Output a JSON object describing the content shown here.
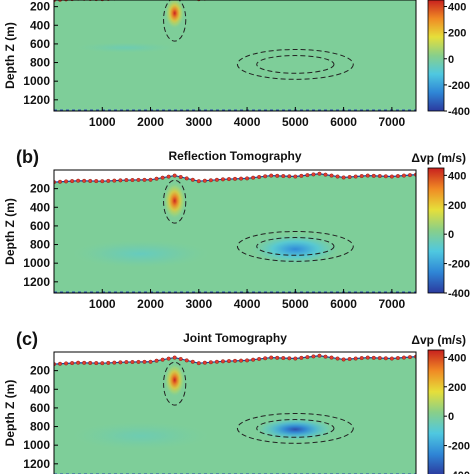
{
  "chart_data": {
    "type": "heatmap",
    "colormap": [
      "#2b3a9e",
      "#2f86d6",
      "#4fc8e0",
      "#88cf8a",
      "#e6df3a",
      "#f08a24",
      "#c8201e"
    ],
    "colorbar_range": [
      -400,
      450
    ],
    "colorbar_ticks": [
      "400",
      "200",
      "0",
      "-200",
      "-400"
    ],
    "colorbar_tick_values": [
      400,
      200,
      0,
      -200,
      -400
    ],
    "colorbar_label": "Δvp (m/s)",
    "ylabel": "Depth Z (m)",
    "xlim": [
      0,
      7500
    ],
    "x_ticks": [
      "1000",
      "2000",
      "3000",
      "4000",
      "5000",
      "6000",
      "7000"
    ],
    "x_tick_values": [
      1000,
      2000,
      3000,
      4000,
      5000,
      6000,
      7000
    ],
    "y_ticks": [
      "200",
      "400",
      "600",
      "800",
      "1000",
      "1200"
    ],
    "y_tick_values": [
      200,
      400,
      600,
      800,
      1000,
      1200
    ],
    "surface_x": [
      0,
      500,
      1000,
      1500,
      2000,
      2500,
      3000,
      3500,
      4000,
      4500,
      5000,
      5500,
      6000,
      6500,
      7000,
      7500
    ],
    "surface_z": [
      130,
      115,
      120,
      108,
      105,
      60,
      120,
      100,
      90,
      60,
      70,
      40,
      80,
      60,
      70,
      50
    ],
    "panels": [
      {
        "label": "",
        "title": "",
        "anomalies": [
          {
            "type": "positive",
            "x_center": 2500,
            "z_center": 270,
            "x_halfwidth": 200,
            "z_halfwidth": 170,
            "peak": 450
          },
          {
            "type": "negative",
            "x_center": 1500,
            "z_center": 640,
            "x_halfwidth": 1100,
            "z_halfwidth": 60,
            "peak": -40
          }
        ],
        "outlines": [
          {
            "x_center": 2500,
            "z_center": 340,
            "x_halfwidth": 230,
            "z_halfwidth": 230
          },
          {
            "x_center": 5000,
            "z_center": 820,
            "x_halfwidth": 1200,
            "z_halfwidth": 160
          },
          {
            "x_center": 5000,
            "z_center": 820,
            "x_halfwidth": 800,
            "z_halfwidth": 95
          }
        ]
      },
      {
        "label": "(b)",
        "title": "Reflection Tomography",
        "anomalies": [
          {
            "type": "positive",
            "x_center": 2500,
            "z_center": 330,
            "x_halfwidth": 230,
            "z_halfwidth": 200,
            "peak": 440
          },
          {
            "type": "negative",
            "x_center": 5000,
            "z_center": 850,
            "x_halfwidth": 950,
            "z_halfwidth": 170,
            "peak": -250
          },
          {
            "type": "negative",
            "x_center": 1800,
            "z_center": 900,
            "x_halfwidth": 1500,
            "z_halfwidth": 160,
            "peak": -60
          }
        ],
        "outlines": [
          {
            "x_center": 2500,
            "z_center": 340,
            "x_halfwidth": 230,
            "z_halfwidth": 230
          },
          {
            "x_center": 5000,
            "z_center": 820,
            "x_halfwidth": 1200,
            "z_halfwidth": 160
          },
          {
            "x_center": 5000,
            "z_center": 820,
            "x_halfwidth": 800,
            "z_halfwidth": 95
          }
        ]
      },
      {
        "label": "(c)",
        "title": "Joint Tomography",
        "anomalies": [
          {
            "type": "positive",
            "x_center": 2500,
            "z_center": 300,
            "x_halfwidth": 210,
            "z_halfwidth": 180,
            "peak": 450
          },
          {
            "type": "negative",
            "x_center": 5000,
            "z_center": 830,
            "x_halfwidth": 850,
            "z_halfwidth": 130,
            "peak": -360
          },
          {
            "type": "negative",
            "x_center": 1800,
            "z_center": 900,
            "x_halfwidth": 1500,
            "z_halfwidth": 160,
            "peak": -40
          }
        ],
        "outlines": [
          {
            "x_center": 2500,
            "z_center": 340,
            "x_halfwidth": 230,
            "z_halfwidth": 230
          },
          {
            "x_center": 5000,
            "z_center": 820,
            "x_halfwidth": 1200,
            "z_halfwidth": 160
          },
          {
            "x_center": 5000,
            "z_center": 820,
            "x_halfwidth": 800,
            "z_halfwidth": 95
          }
        ]
      }
    ]
  }
}
